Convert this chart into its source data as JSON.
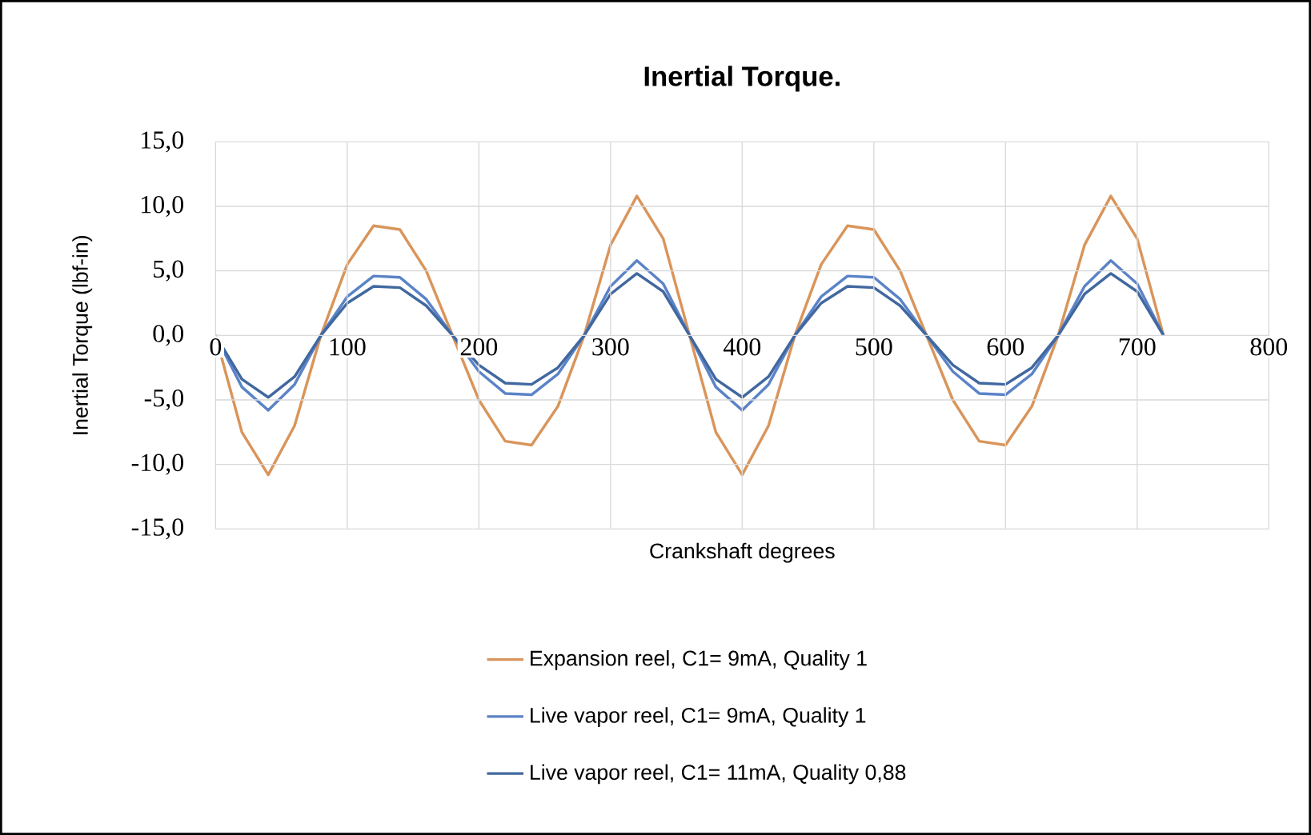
{
  "chart_data": {
    "type": "line",
    "title": "Inertial Torque.",
    "xlabel": "Crankshaft degrees",
    "ylabel": "Inertial Torque (lbf-in)",
    "x": [
      0,
      20,
      40,
      60,
      80,
      100,
      120,
      140,
      160,
      180,
      200,
      220,
      240,
      260,
      280,
      300,
      320,
      340,
      360,
      380,
      400,
      420,
      440,
      460,
      480,
      500,
      520,
      540,
      560,
      580,
      600,
      620,
      640,
      660,
      680,
      700,
      720
    ],
    "series": [
      {
        "name": "Expansion reel, C1= 9mA, Quality 1",
        "color": "#d9955b",
        "values": [
          0,
          -7.5,
          -10.8,
          -7,
          0,
          5.5,
          8.5,
          8.2,
          5,
          0,
          -5,
          -8.2,
          -8.5,
          -5.5,
          0,
          7,
          10.8,
          7.5,
          0,
          -7.5,
          -10.8,
          -7,
          0,
          5.5,
          8.5,
          8.2,
          5,
          0,
          -5,
          -8.2,
          -8.5,
          -5.5,
          0,
          7,
          10.8,
          7.5,
          0
        ]
      },
      {
        "name": "Live vapor reel, C1= 9mA, Quality 1",
        "color": "#5b83c7",
        "values": [
          0,
          -4,
          -5.8,
          -3.8,
          0,
          3,
          4.6,
          4.5,
          2.8,
          0,
          -2.8,
          -4.5,
          -4.6,
          -3,
          0,
          3.8,
          5.8,
          4,
          0,
          -4,
          -5.8,
          -3.8,
          0,
          3,
          4.6,
          4.5,
          2.8,
          0,
          -2.8,
          -4.5,
          -4.6,
          -3,
          0,
          3.8,
          5.8,
          4,
          0
        ]
      },
      {
        "name": "Live vapor reel, C1= 11mA, Quality 0,88",
        "color": "#41689f",
        "values": [
          0,
          -3.4,
          -4.8,
          -3.2,
          0,
          2.5,
          3.8,
          3.7,
          2.3,
          0,
          -2.3,
          -3.7,
          -3.8,
          -2.5,
          0,
          3.2,
          4.8,
          3.4,
          0,
          -3.4,
          -4.8,
          -3.2,
          0,
          2.5,
          3.8,
          3.7,
          2.3,
          0,
          -2.3,
          -3.7,
          -3.8,
          -2.5,
          0,
          3.2,
          4.8,
          3.4,
          0
        ]
      }
    ],
    "xlim": [
      0,
      800
    ],
    "xticks": [
      0,
      100,
      200,
      300,
      400,
      500,
      600,
      700,
      800
    ],
    "ylim": [
      -15,
      15
    ],
    "yticks": [
      {
        "value": -15,
        "label": "-15,0"
      },
      {
        "value": -10,
        "label": "-10,0"
      },
      {
        "value": -5,
        "label": "-5,0"
      },
      {
        "value": 0,
        "label": "0,0"
      },
      {
        "value": 5,
        "label": "5,0"
      },
      {
        "value": 10,
        "label": "10,0"
      },
      {
        "value": 15,
        "label": "15,0"
      }
    ],
    "grid": true,
    "legend": "bottom",
    "marker": "none",
    "line_style": "solid"
  }
}
